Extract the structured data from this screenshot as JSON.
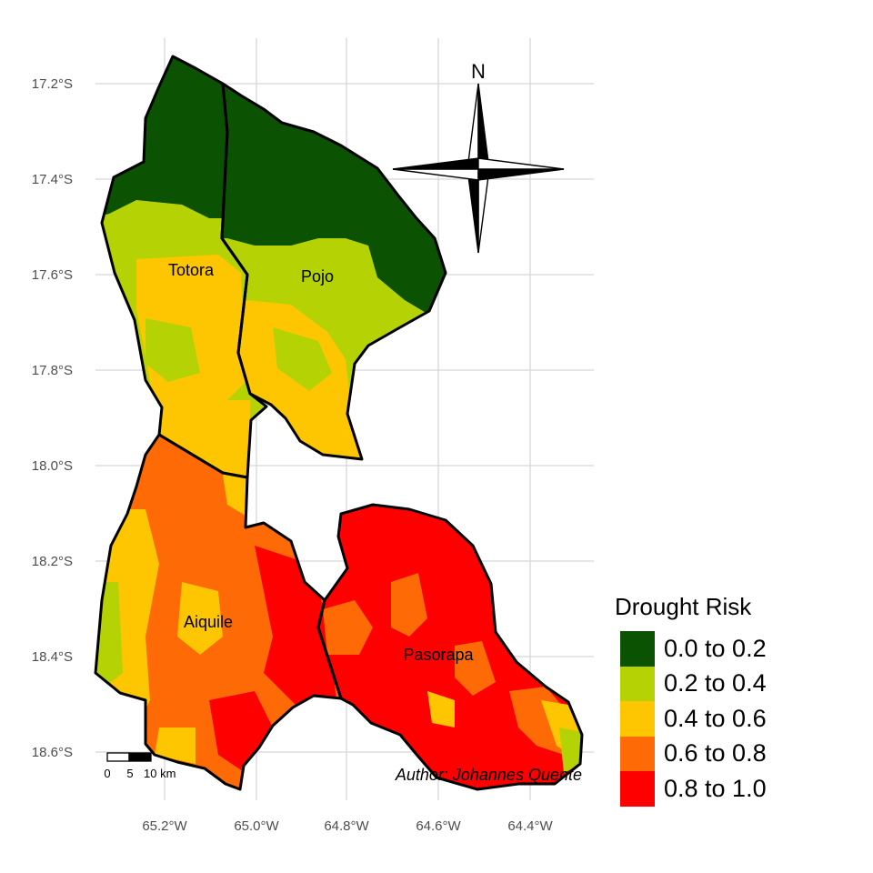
{
  "map": {
    "lat_ticks": [
      "17.2°S",
      "17.4°S",
      "17.6°S",
      "17.8°S",
      "18.0°S",
      "18.2°S",
      "18.4°S",
      "18.6°S"
    ],
    "lon_ticks": [
      "65.2°W",
      "65.0°W",
      "64.8°W",
      "64.6°W",
      "64.4°W"
    ],
    "regions": [
      "Totora",
      "Pojo",
      "Aiquile",
      "Pasorapa"
    ],
    "north_label": "N",
    "scale_labels": [
      "0",
      "5",
      "10 km"
    ],
    "author": "Author: Johannes Quente"
  },
  "legend": {
    "title": "Drought Risk",
    "items": [
      {
        "label": "0.0 to 0.2",
        "color": "#0b5202"
      },
      {
        "label": "0.2 to 0.4",
        "color": "#b5d304"
      },
      {
        "label": "0.4 to 0.6",
        "color": "#fdc601"
      },
      {
        "label": "0.6 to 0.8",
        "color": "#fd6a06"
      },
      {
        "label": "0.8 to 1.0",
        "color": "#fe0000"
      }
    ]
  }
}
